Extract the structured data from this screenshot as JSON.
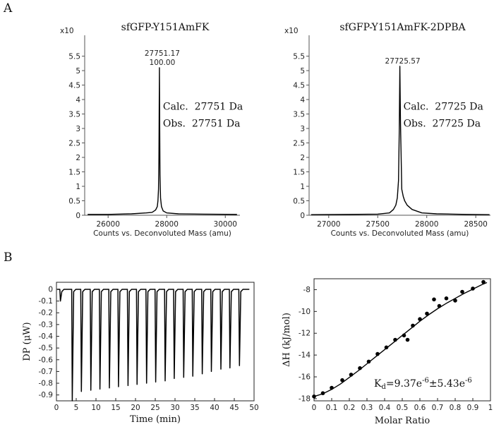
{
  "panels": {
    "a": "A",
    "b": "B"
  },
  "chart_data": [
    {
      "type": "line",
      "title": "sfGFP-Y151AmFK",
      "xlabel": "Counts vs. Deconvoluted Mass (amu)",
      "ylabel": "",
      "scale_label": "x10",
      "scale_exp": "5",
      "xlim": [
        25200,
        30500
      ],
      "ylim": [
        0,
        6.1
      ],
      "x_ticks": [
        26000,
        28000,
        30000
      ],
      "y_ticks": [
        0,
        0.5,
        1,
        1.5,
        2,
        2.5,
        3,
        3.5,
        4,
        4.5,
        5,
        5.5
      ],
      "peak": {
        "x": 27751.17,
        "y": 5.1,
        "label": "27751.17",
        "sublabel": "100.00"
      },
      "annotations": [
        "Calc.  27751 Da",
        "Obs.  27751 Da"
      ],
      "series": [
        {
          "x": [
            25300,
            26000,
            26800,
            27300,
            27500,
            27620,
            27680,
            27700,
            27720,
            27735,
            27745,
            27751,
            27758,
            27770,
            27790,
            27820,
            27880,
            28000,
            28400,
            29200,
            30400
          ],
          "y": [
            0.03,
            0.03,
            0.05,
            0.08,
            0.1,
            0.18,
            0.3,
            0.5,
            0.9,
            2.0,
            3.8,
            5.1,
            3.6,
            1.4,
            0.6,
            0.3,
            0.15,
            0.08,
            0.05,
            0.04,
            0.03
          ]
        }
      ]
    },
    {
      "type": "line",
      "title": "sfGFP-Y151AmFK-2DPBA",
      "xlabel": "Counts vs. Deconvoluted Mass (amu)",
      "ylabel": "",
      "scale_label": "x10",
      "scale_exp": "5",
      "xlim": [
        26800,
        28650
      ],
      "ylim": [
        0,
        6.1
      ],
      "x_ticks": [
        27000,
        27500,
        28000,
        28500
      ],
      "y_ticks": [
        0,
        0.5,
        1,
        1.5,
        2,
        2.5,
        3,
        3.5,
        4,
        4.5,
        5,
        5.5
      ],
      "peak": {
        "x": 27725.57,
        "y": 5.15,
        "label": "27725.57"
      },
      "annotations": [
        "Calc.  27725 Da",
        "Obs.  27725 Da"
      ],
      "series": [
        {
          "x": [
            26820,
            27200,
            27500,
            27620,
            27660,
            27685,
            27700,
            27712,
            27720,
            27725.57,
            27732,
            27745,
            27760,
            27775,
            27800,
            27850,
            27950,
            28100,
            28400,
            28640
          ],
          "y": [
            0.02,
            0.03,
            0.04,
            0.08,
            0.2,
            0.35,
            0.6,
            1.2,
            3.0,
            5.15,
            3.2,
            0.9,
            0.65,
            0.5,
            0.35,
            0.2,
            0.08,
            0.05,
            0.03,
            0.02
          ]
        }
      ]
    },
    {
      "type": "line",
      "title": "",
      "xlabel": "Time (min)",
      "ylabel": "DP (μW)",
      "xlim": [
        0,
        50
      ],
      "ylim": [
        -0.95,
        0.06
      ],
      "x_ticks": [
        0,
        5,
        10,
        15,
        20,
        25,
        30,
        35,
        40,
        45,
        50
      ],
      "y_ticks": [
        0,
        -0.1,
        -0.2,
        -0.3,
        -0.4,
        -0.5,
        -0.6,
        -0.7,
        -0.8,
        -0.9
      ],
      "baseline": 0.0,
      "injections": {
        "times": [
          1.0,
          4.0,
          6.3,
          8.7,
          11.0,
          13.4,
          15.7,
          18.1,
          20.4,
          22.8,
          25.1,
          27.5,
          29.8,
          32.2,
          34.5,
          36.9,
          39.2,
          41.6,
          43.9,
          46.3
        ],
        "depths": [
          -0.1,
          -0.95,
          -0.87,
          -0.86,
          -0.85,
          -0.84,
          -0.83,
          -0.82,
          -0.81,
          -0.8,
          -0.79,
          -0.78,
          -0.76,
          -0.75,
          -0.74,
          -0.72,
          -0.7,
          -0.68,
          -0.67,
          -0.65
        ]
      }
    },
    {
      "type": "scatter",
      "title": "",
      "xlabel": "Molar Ratio",
      "ylabel": "ΔH (kJ/mol)",
      "xlim": [
        0,
        1.0
      ],
      "ylim": [
        -18.2,
        -7.0
      ],
      "x_ticks": [
        0,
        0.1,
        0.2,
        0.3,
        0.4,
        0.5,
        0.6,
        0.7,
        0.8,
        0.9,
        1
      ],
      "y_ticks": [
        -8,
        -10,
        -12,
        -14,
        -16,
        -18
      ],
      "kd_label": {
        "prefix": "K",
        "subscript": "d",
        "value": "=9.37e",
        "exp1": "-6",
        "middle": "±5.43e",
        "exp2": "-6"
      },
      "points": {
        "x": [
          0.0,
          0.05,
          0.1,
          0.16,
          0.21,
          0.26,
          0.31,
          0.36,
          0.41,
          0.46,
          0.51,
          0.53,
          0.56,
          0.6,
          0.64,
          0.68,
          0.71,
          0.75,
          0.8,
          0.84,
          0.9,
          0.96
        ],
        "y": [
          -17.8,
          -17.5,
          -17.0,
          -16.3,
          -15.8,
          -15.2,
          -14.6,
          -13.9,
          -13.3,
          -12.6,
          -12.2,
          -12.6,
          -11.3,
          -10.7,
          -10.2,
          -8.9,
          -9.5,
          -8.8,
          -9.0,
          -8.2,
          -7.9,
          -7.3
        ]
      },
      "fit": {
        "x": [
          0.0,
          0.05,
          0.1,
          0.15,
          0.2,
          0.25,
          0.3,
          0.35,
          0.4,
          0.45,
          0.5,
          0.55,
          0.6,
          0.65,
          0.7,
          0.75,
          0.8,
          0.85,
          0.9,
          0.95,
          0.98
        ],
        "y": [
          -17.8,
          -17.55,
          -17.15,
          -16.65,
          -16.05,
          -15.45,
          -14.8,
          -14.15,
          -13.5,
          -12.85,
          -12.2,
          -11.55,
          -10.9,
          -10.3,
          -9.75,
          -9.25,
          -8.8,
          -8.35,
          -7.95,
          -7.55,
          -7.35
        ]
      }
    }
  ]
}
